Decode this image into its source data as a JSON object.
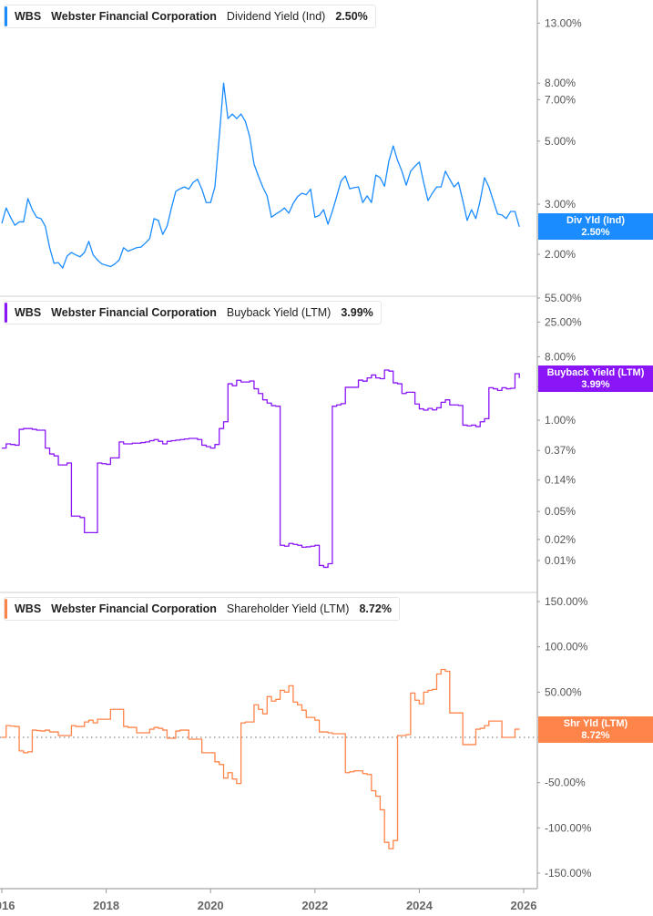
{
  "colors": {
    "dividend": "#1a8cff",
    "buyback": "#8a15f7",
    "shareholder": "#ff8449",
    "axis": "#9a9a9a",
    "text": "#555555"
  },
  "panels": [
    {
      "ticker": "WBS",
      "company": "Webster Financial Corporation",
      "metric": "Dividend Yield (Ind)",
      "value": "2.50%",
      "tag_label": "Div Yld (Ind)",
      "tag_value": "2.50%"
    },
    {
      "ticker": "WBS",
      "company": "Webster Financial Corporation",
      "metric": "Buyback Yield (LTM)",
      "value": "3.99%",
      "tag_label": "Buyback Yield (LTM)",
      "tag_value": "3.99%"
    },
    {
      "ticker": "WBS",
      "company": "Webster Financial Corporation",
      "metric": "Shareholder Yield (LTM)",
      "value": "8.72%",
      "tag_label": "Shr Yld (LTM)",
      "tag_value": "8.72%"
    }
  ],
  "chart_data": [
    {
      "type": "line",
      "name": "Dividend Yield (Ind)",
      "scale": "log",
      "yticks": [
        13,
        8,
        7,
        5,
        3,
        2
      ],
      "ytick_labels": [
        "13.00%",
        "8.00%",
        "7.00%",
        "5.00%",
        "3.00%",
        "2.00%"
      ],
      "values": [
        2.57,
        2.91,
        2.7,
        2.53,
        2.6,
        2.6,
        3.14,
        2.87,
        2.7,
        2.67,
        2.51,
        2.11,
        1.86,
        1.87,
        1.79,
        1.97,
        2.03,
        1.99,
        1.96,
        2.03,
        2.22,
        1.99,
        1.91,
        1.85,
        1.83,
        1.81,
        1.85,
        1.91,
        2.11,
        2.05,
        2.08,
        2.11,
        2.12,
        2.19,
        2.27,
        2.67,
        2.63,
        2.35,
        2.51,
        2.91,
        3.33,
        3.4,
        3.45,
        3.39,
        3.58,
        3.67,
        3.39,
        3.04,
        3.04,
        3.45,
        5.18,
        8.0,
        6.0,
        6.23,
        6.0,
        6.23,
        5.87,
        5.18,
        4.15,
        3.77,
        3.45,
        3.21,
        2.7,
        2.77,
        2.83,
        2.91,
        2.79,
        3.02,
        3.19,
        3.28,
        3.24,
        3.39,
        2.7,
        2.74,
        2.87,
        2.55,
        2.83,
        3.19,
        3.62,
        3.77,
        3.4,
        3.43,
        3.45,
        3.04,
        3.21,
        3.04,
        3.8,
        3.72,
        3.47,
        4.25,
        4.81,
        4.28,
        3.92,
        3.5,
        3.92,
        4.08,
        4.22,
        3.58,
        3.09,
        3.28,
        3.45,
        3.45,
        3.92,
        3.67,
        3.45,
        3.58,
        3.09,
        2.63,
        2.87,
        2.67,
        3.09,
        3.72,
        3.45,
        3.09,
        2.77,
        2.75,
        2.67,
        2.83,
        2.83,
        2.5
      ]
    },
    {
      "type": "line",
      "name": "Buyback Yield (LTM)",
      "scale": "log",
      "yticks": [
        55,
        25,
        8,
        3,
        1,
        0.37,
        0.14,
        0.05,
        0.02,
        0.01
      ],
      "ytick_labels": [
        "55.00%",
        "25.00%",
        "8.00%",
        "3.00%",
        "1.00%",
        "0.37%",
        "0.14%",
        "0.05%",
        "0.02%",
        "0.01%"
      ],
      "values": [
        0.4,
        0.46,
        0.45,
        0.44,
        0.74,
        0.76,
        0.76,
        0.74,
        0.72,
        0.72,
        0.4,
        0.33,
        0.31,
        0.23,
        0.23,
        0.245,
        0.043,
        0.043,
        0.041,
        0.025,
        0.025,
        0.025,
        0.245,
        0.24,
        0.235,
        0.29,
        0.29,
        0.49,
        0.46,
        0.46,
        0.47,
        0.47,
        0.48,
        0.49,
        0.51,
        0.53,
        0.5,
        0.46,
        0.5,
        0.51,
        0.52,
        0.53,
        0.54,
        0.55,
        0.55,
        0.53,
        0.44,
        0.42,
        0.4,
        0.45,
        0.76,
        0.95,
        3.3,
        3.1,
        3.7,
        3.5,
        3.5,
        3.62,
        2.8,
        2.4,
        1.95,
        1.75,
        1.61,
        1.58,
        0.0165,
        0.016,
        0.0175,
        0.017,
        0.0165,
        0.0155,
        0.0157,
        0.016,
        0.0165,
        0.0085,
        0.008,
        0.009,
        1.58,
        1.65,
        1.72,
        2.94,
        2.94,
        2.94,
        3.72,
        3.6,
        4.0,
        4.4,
        4.0,
        3.9,
        5.18,
        5.0,
        3.4,
        3.3,
        2.4,
        2.5,
        2.5,
        1.7,
        1.45,
        1.39,
        1.47,
        1.4,
        1.5,
        1.8,
        1.95,
        1.65,
        1.65,
        1.62,
        0.85,
        0.83,
        0.85,
        0.81,
        0.95,
        1.05,
        2.9,
        2.8,
        2.65,
        2.9,
        2.8,
        2.85,
        4.6,
        3.99
      ]
    },
    {
      "type": "line",
      "name": "Shareholder Yield (LTM)",
      "scale": "linear",
      "ylim": [
        -150,
        150
      ],
      "yticks": [
        150,
        100,
        50,
        0,
        -50,
        -100,
        -150
      ],
      "ytick_labels": [
        "150.00%",
        "100.00%",
        "50.00%",
        "0.00%",
        "-50.00%",
        "-100.00%",
        "-150.00%"
      ],
      "values": [
        0,
        13,
        12.5,
        12,
        -15,
        -17,
        -16,
        8,
        7.5,
        7,
        8,
        6,
        6,
        2,
        2,
        2,
        13,
        12,
        12,
        17,
        19,
        16,
        20,
        20,
        20,
        31,
        31,
        31,
        12,
        11,
        11,
        5,
        5,
        5,
        9,
        11,
        10,
        8,
        -1,
        -1,
        7,
        8,
        8,
        -2,
        -2,
        -2,
        -17,
        -17,
        -17,
        -27,
        -30,
        -45,
        -39,
        -46,
        -51,
        16,
        17,
        17,
        36,
        31,
        26,
        45,
        40,
        42,
        52,
        50,
        57,
        39,
        36,
        30,
        22,
        22,
        19,
        6,
        6,
        5,
        4,
        4,
        4,
        -39,
        -38,
        -37,
        -37,
        -40,
        -41,
        -59,
        -65,
        -80,
        -116,
        -123,
        -114,
        2,
        2,
        3,
        49,
        41,
        37,
        50,
        52,
        53,
        70,
        75,
        73,
        27,
        27,
        27,
        -8,
        -8,
        -8,
        9,
        10,
        13,
        18,
        18,
        18,
        0,
        0,
        0,
        9,
        8.72
      ]
    }
  ],
  "x": [
    "2016-01",
    "2016-02",
    "2016-03",
    "2016-04",
    "2016-05",
    "2016-06",
    "2016-07",
    "2016-08",
    "2016-09",
    "2016-10",
    "2016-11",
    "2016-12",
    "2017-01",
    "2017-02",
    "2017-03",
    "2017-04",
    "2017-05",
    "2017-06",
    "2017-07",
    "2017-08",
    "2017-09",
    "2017-10",
    "2017-11",
    "2017-12",
    "2018-01",
    "2018-02",
    "2018-03",
    "2018-04",
    "2018-05",
    "2018-06",
    "2018-07",
    "2018-08",
    "2018-09",
    "2018-10",
    "2018-11",
    "2018-12",
    "2019-01",
    "2019-02",
    "2019-03",
    "2019-04",
    "2019-05",
    "2019-06",
    "2019-07",
    "2019-08",
    "2019-09",
    "2019-10",
    "2019-11",
    "2019-12",
    "2020-01",
    "2020-02",
    "2020-03",
    "2020-04",
    "2020-05",
    "2020-06",
    "2020-07",
    "2020-08",
    "2020-09",
    "2020-10",
    "2020-11",
    "2020-12",
    "2021-01",
    "2021-02",
    "2021-03",
    "2021-04",
    "2021-05",
    "2021-06",
    "2021-07",
    "2021-08",
    "2021-09",
    "2021-10",
    "2021-11",
    "2021-12",
    "2022-01",
    "2022-02",
    "2022-03",
    "2022-04",
    "2022-05",
    "2022-06",
    "2022-07",
    "2022-08",
    "2022-09",
    "2022-10",
    "2022-11",
    "2022-12",
    "2023-01",
    "2023-02",
    "2023-03",
    "2023-04",
    "2023-05",
    "2023-06",
    "2023-07",
    "2023-08",
    "2023-09",
    "2023-10",
    "2023-11",
    "2023-12",
    "2024-01",
    "2024-02",
    "2024-03",
    "2024-04",
    "2024-05",
    "2024-06",
    "2024-07",
    "2024-08",
    "2024-09",
    "2024-10",
    "2024-11",
    "2024-12",
    "2025-01",
    "2025-02",
    "2025-03",
    "2025-04",
    "2025-05",
    "2025-06",
    "2025-07",
    "2025-08",
    "2025-09",
    "2025-10",
    "2025-11",
    "2025-12"
  ],
  "xticks": [
    "2016",
    "2018",
    "2020",
    "2022",
    "2024",
    "2026"
  ]
}
